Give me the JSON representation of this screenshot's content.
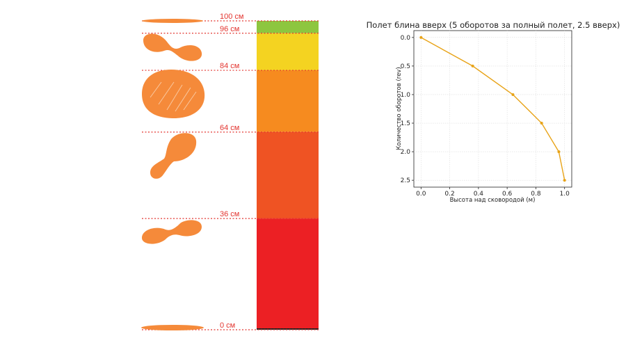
{
  "height_markers": [
    {
      "label": "100 см",
      "cm": 100
    },
    {
      "label": "96 см",
      "cm": 96
    },
    {
      "label": "84 см",
      "cm": 84
    },
    {
      "label": "64 см",
      "cm": 64
    },
    {
      "label": "36 см",
      "cm": 36
    },
    {
      "label": "0 см",
      "cm": 0
    }
  ],
  "color_bar": [
    {
      "from_cm": 96,
      "to_cm": 100,
      "color": "#8dc63f"
    },
    {
      "from_cm": 84,
      "to_cm": 96,
      "color": "#f4d321"
    },
    {
      "from_cm": 64,
      "to_cm": 84,
      "color": "#f68b1f"
    },
    {
      "from_cm": 36,
      "to_cm": 64,
      "color": "#ef5323"
    },
    {
      "from_cm": 0,
      "to_cm": 36,
      "color": "#ec2024"
    }
  ],
  "colors": {
    "pancake": "#f58a3a",
    "marker_line": "#e3342f",
    "series_line": "#e8a317",
    "grid": "#dddddd"
  },
  "chart_data": {
    "type": "line",
    "title": "Полет блина вверх (5 оборотов за полный полет, 2.5 вверх)",
    "xlabel": "Высота над сковородой (м)",
    "ylabel": "Количество оборотов (rev)",
    "xlim": [
      -0.05,
      1.05
    ],
    "ylim": [
      2.62,
      -0.12
    ],
    "y_inverted": true,
    "grid": true,
    "xticks": [
      0.0,
      0.2,
      0.4,
      0.6,
      0.8,
      1.0
    ],
    "xtick_labels": [
      "0.0",
      "0.2",
      "0.4",
      "0.6",
      "0.8",
      "1.0"
    ],
    "yticks": [
      0.0,
      0.5,
      1.0,
      1.5,
      2.0,
      2.5
    ],
    "ytick_labels": [
      "0.0",
      "0.5",
      "1.0",
      "1.5",
      "2.0",
      "2.5"
    ],
    "series": [
      {
        "x": [
          0.0,
          0.36,
          0.64,
          0.84,
          0.96,
          1.0
        ],
        "y": [
          0.0,
          0.5,
          1.0,
          1.5,
          2.0,
          2.5
        ],
        "color": "#e8a317",
        "marker": "circle"
      }
    ]
  }
}
